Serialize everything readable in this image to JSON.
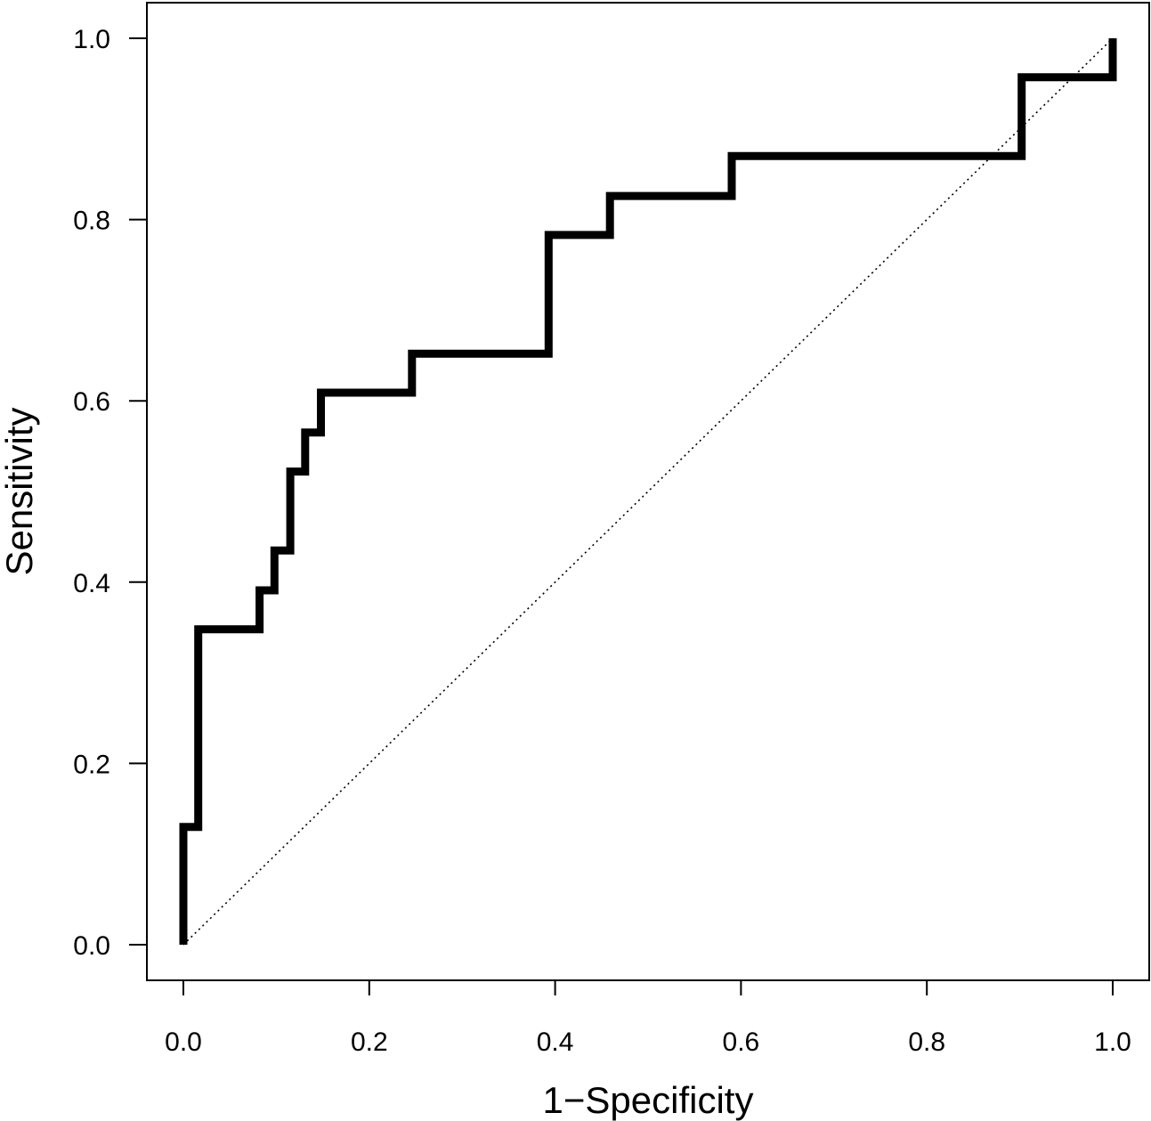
{
  "chart_data": {
    "type": "line",
    "title": "",
    "xlabel": "1−Specificity",
    "ylabel": "Sensitivity",
    "xlim": [
      0,
      1
    ],
    "ylim": [
      0,
      1
    ],
    "xticks": [
      "0.0",
      "0.2",
      "0.4",
      "0.6",
      "0.8",
      "1.0"
    ],
    "yticks": [
      "0.0",
      "0.2",
      "0.4",
      "0.6",
      "0.8",
      "1.0"
    ],
    "grid": false,
    "legend": "none",
    "series": [
      {
        "style": "step",
        "color": "#000000",
        "points": [
          [
            0.0,
            0.0
          ],
          [
            0.0,
            0.13
          ],
          [
            0.016,
            0.13
          ],
          [
            0.016,
            0.348
          ],
          [
            0.082,
            0.348
          ],
          [
            0.082,
            0.391
          ],
          [
            0.098,
            0.391
          ],
          [
            0.098,
            0.435
          ],
          [
            0.115,
            0.435
          ],
          [
            0.115,
            0.522
          ],
          [
            0.131,
            0.522
          ],
          [
            0.131,
            0.565
          ],
          [
            0.148,
            0.565
          ],
          [
            0.148,
            0.609
          ],
          [
            0.246,
            0.609
          ],
          [
            0.246,
            0.652
          ],
          [
            0.393,
            0.652
          ],
          [
            0.393,
            0.783
          ],
          [
            0.459,
            0.783
          ],
          [
            0.459,
            0.826
          ],
          [
            0.59,
            0.826
          ],
          [
            0.59,
            0.87
          ],
          [
            0.902,
            0.87
          ],
          [
            0.902,
            0.957
          ],
          [
            1.0,
            0.957
          ],
          [
            1.0,
            1.0
          ]
        ]
      },
      {
        "style": "dotted",
        "color": "#000000",
        "points": [
          [
            0,
            0
          ],
          [
            1,
            1
          ]
        ]
      }
    ]
  }
}
